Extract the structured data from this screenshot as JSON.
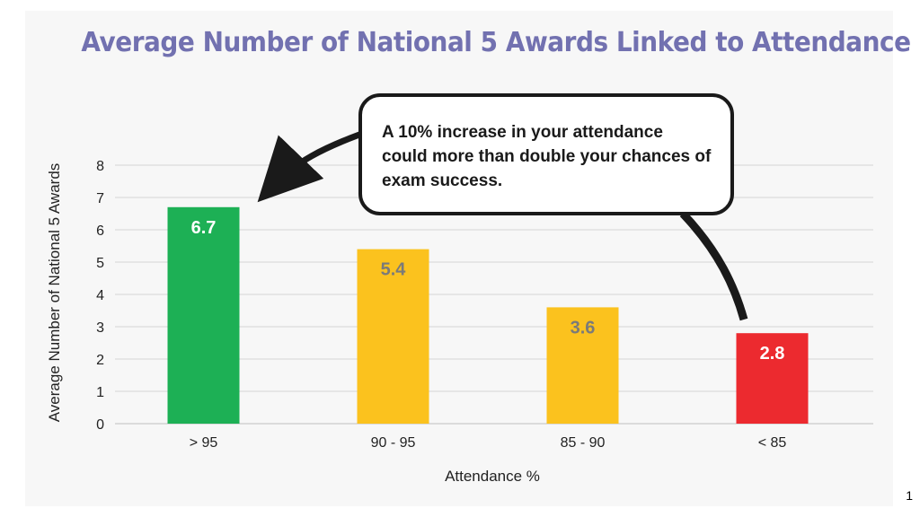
{
  "chart_data": {
    "type": "bar",
    "title": "Average Number of National 5 Awards Linked to Attendance",
    "xlabel": "Attendance %",
    "ylabel": "Average Number of National 5 Awards",
    "categories": [
      "> 95",
      "90 - 95",
      "85 - 90",
      "< 85"
    ],
    "values": [
      6.7,
      5.4,
      3.6,
      2.8
    ],
    "value_labels": [
      "6.7",
      "5.4",
      "3.6",
      "2.8"
    ],
    "bar_colors": [
      "#1db055",
      "#fbc21e",
      "#fbc21e",
      "#ec2a2f"
    ],
    "value_label_colors": [
      "#ffffff",
      "#7a7a7a",
      "#7a7a7a",
      "#ffffff"
    ],
    "ylim": [
      0,
      8
    ],
    "yticks": [
      "0",
      "1",
      "2",
      "3",
      "4",
      "5",
      "6",
      "7",
      "8"
    ],
    "grid": true,
    "annotation": "A 10% increase in your attendance could more than double your chances of exam success."
  },
  "title_color": "#7271b0",
  "page_number": "1"
}
